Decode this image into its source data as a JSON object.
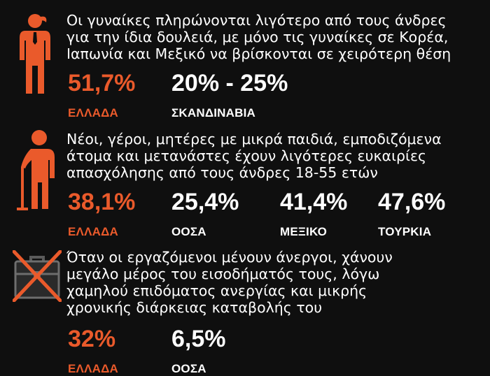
{
  "colors": {
    "accent": "#ea5a2b",
    "background": "#0f0f0f",
    "text": "#ffffff"
  },
  "sections": [
    {
      "icon": "woman-icon",
      "lines": [
        "Οι γυναίκες πληρώνονται λιγότερο από τους άνδρες",
        "για την ίδια δουλειά, με μόνο τις γυναίκες σε Κορέα,",
        "Ιαπωνία και Μεξικό να βρίσκονται σε χειρότερη θέση"
      ],
      "stats": [
        {
          "value": "51,7%",
          "label": "ΕΛΛΑΔΑ"
        },
        {
          "value": "20% - 25%",
          "label": "ΣΚΑΝΔΙΝΑΒΙΑ"
        }
      ]
    },
    {
      "icon": "elderly-person-with-cane-icon",
      "lines": [
        "Νέοι, γέροι, μητέρες με μικρά παιδιά, εμποδιζόμενα",
        "άτομα και μετανάστες έχουν λιγότερες ευκαιρίες",
        "απασχόλησης από τους άνδρες 18-55 ετών"
      ],
      "stats": [
        {
          "value": "38,1%",
          "label": "ΕΛΛΑΔΑ"
        },
        {
          "value": "25,4%",
          "label": "ΟΟΣΑ"
        },
        {
          "value": "41,4%",
          "label": "ΜΕΞΙΚΟ"
        },
        {
          "value": "47,6%",
          "label": "ΤΟΥΡΚΙΑ"
        }
      ]
    },
    {
      "icon": "crossed-out-briefcase-icon",
      "lines": [
        "Όταν οι εργαζόμενοι μένουν άνεργοι, χάνουν",
        "μεγάλο μέρος του εισοδήματός τους, λόγω",
        "χαμηλού επιδόματος ανεργίας και μικρής",
        "χρονικής διάρκειας καταβολής του"
      ],
      "stats": [
        {
          "value": "32%",
          "label": "ΕΛΛΑΔΑ"
        },
        {
          "value": "6,5%",
          "label": "ΟΟΣΑ"
        }
      ]
    }
  ]
}
